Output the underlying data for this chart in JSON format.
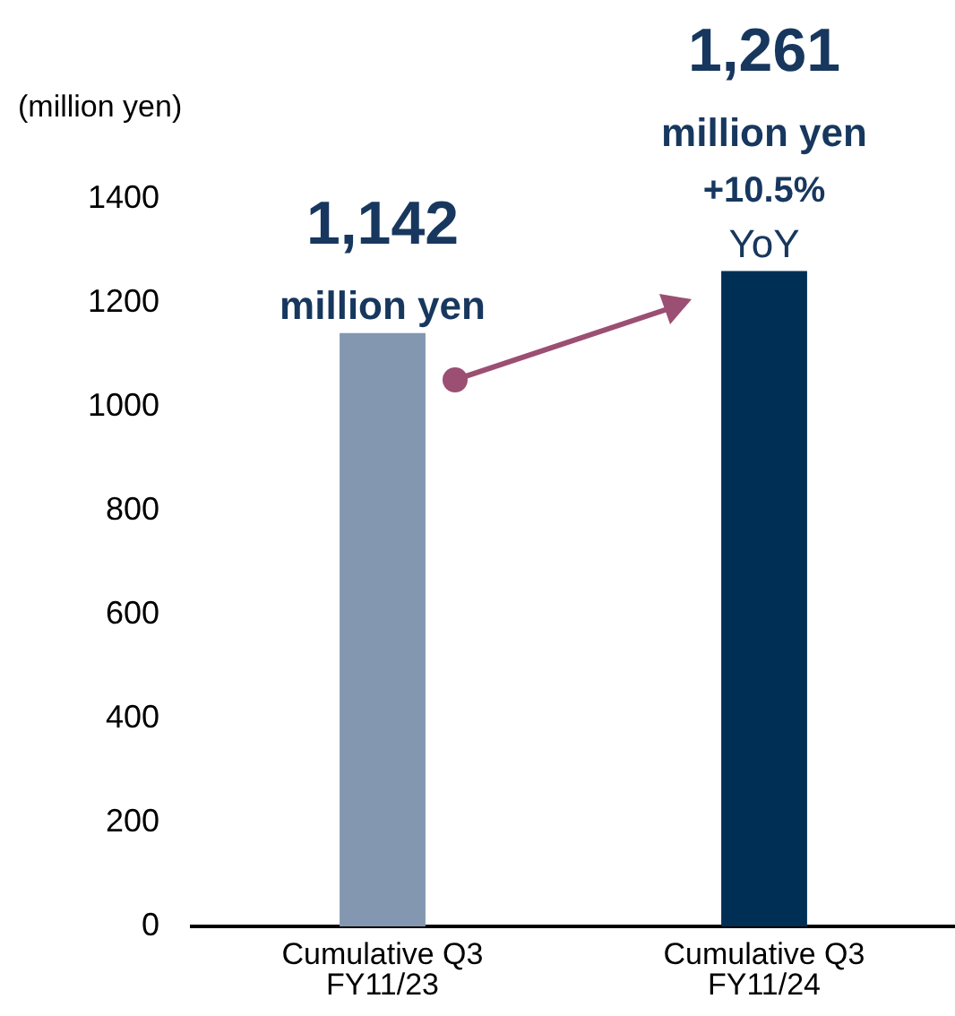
{
  "chart_data": {
    "type": "bar",
    "ylabel": "(million yen)",
    "categories": [
      "Cumulative Q3 FY11/23",
      "Cumulative Q3 FY11/24"
    ],
    "values": [
      1142,
      1261
    ],
    "colors": [
      "#8497b0",
      "#002f55"
    ],
    "value_labels": [
      "1,142",
      "1,261"
    ],
    "annotations": [
      {
        "text": "million yen",
        "x": "Cumulative Q3 FY11/23",
        "y": 1142
      },
      {
        "text": "million yen",
        "x": "Cumulative Q3 FY11/24",
        "y": 1261
      },
      {
        "text": "+10.5%",
        "x": "Cumulative Q3 FY11/24",
        "y": 1261
      },
      {
        "text": "YoY",
        "x": "Cumulative Q3 FY11/24",
        "y": 1261
      }
    ],
    "ylim": [
      0,
      1400
    ],
    "yticks": [
      0,
      200,
      400,
      600,
      800,
      1000,
      1200,
      1400
    ],
    "grid": false,
    "legend": false
  }
}
